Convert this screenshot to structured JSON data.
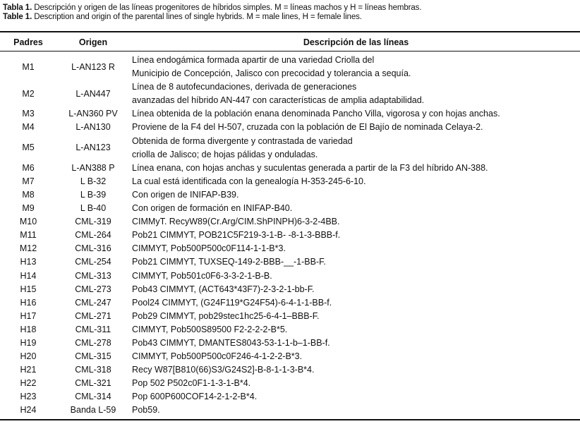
{
  "caption": {
    "es_label": "Tabla 1.",
    "es_text": "Descripción y origen de las líneas progenitores de híbridos simples. M = líneas machos y H = líneas hembras.",
    "en_label": "Table 1.",
    "en_text": "Description and origin of the parental lines of single hybrids. M = male lines, H = female lines."
  },
  "headers": [
    "Padres",
    "Origen",
    "Descripción de las líneas"
  ],
  "rows": [
    {
      "padre": "M1",
      "origen": "L-AN123 R",
      "desc": [
        "Línea endogámica formada apartir de una variedad Criolla del",
        "Municipio de Concepción, Jalisco con precocidad y tolerancia a sequía."
      ]
    },
    {
      "padre": "M2",
      "origen": "L-AN447",
      "desc": [
        "Línea de 8 autofecundaciones, derivada de generaciones",
        "avanzadas del híbrido AN-447 con características de amplia adaptabilidad."
      ]
    },
    {
      "padre": "M3",
      "origen": "L-AN360 PV",
      "desc": [
        "Línea obtenida de la población enana denominada Pancho Villa, vigorosa y con hojas anchas."
      ]
    },
    {
      "padre": "M4",
      "origen": "L-AN130",
      "desc": [
        "Proviene de la F4 del H-507, cruzada con la población de El Bajío de nominada Celaya-2."
      ]
    },
    {
      "padre": "M5",
      "origen": "L-AN123",
      "desc": [
        "Obtenida de forma divergente y contrastada de variedad",
        "criolla de Jalisco; de hojas pálidas y onduladas."
      ]
    },
    {
      "padre": "M6",
      "origen": "L-AN388 P",
      "desc": [
        "Línea enana, con hojas anchas y suculentas generada a partir de la F3 del híbrido AN-388."
      ]
    },
    {
      "padre": "M7",
      "origen": "L B-32",
      "desc": [
        "La cual está identificada con la genealogía H-353-245-6-10."
      ]
    },
    {
      "padre": "M8",
      "origen": "L B-39",
      "desc": [
        "Con origen de INIFAP-B39."
      ]
    },
    {
      "padre": "M9",
      "origen": "L B-40",
      "desc": [
        "Con origen de formación en INIFAP-B40."
      ]
    },
    {
      "padre": "M10",
      "origen": "CML-319",
      "desc": [
        "CIMMyT. RecyW89(Cr.Arg/CIM.ShPINPH)6-3-2-4BB."
      ]
    },
    {
      "padre": "M11",
      "origen": "CML-264",
      "desc": [
        "Pob21 CIMMYT, POB21C5F219-3-1-B- -8-1-3-BBB-f."
      ]
    },
    {
      "padre": "M12",
      "origen": "CML-316",
      "desc": [
        "CIMMYT, Pob500P500c0F114-1-1-B*3."
      ]
    },
    {
      "padre": "H13",
      "origen": "CML-254",
      "desc": [
        "Pob21 CIMMYT, TUXSEQ-149-2-BBB-__-1-BB-F."
      ]
    },
    {
      "padre": "H14",
      "origen": "CML-313",
      "desc": [
        "CIMMYT, Pob501c0F6-3-3-2-1-B-B."
      ]
    },
    {
      "padre": "H15",
      "origen": "CML-273",
      "desc": [
        "Pob43 CIMMYT, (ACT643*43F7)-2-3-2-1-bb-F."
      ]
    },
    {
      "padre": "H16",
      "origen": "CML-247",
      "desc": [
        "Pool24 CIMMYT, (G24F119*G24F54)-6-4-1-1-BB-f."
      ]
    },
    {
      "padre": "H17",
      "origen": "CML-271",
      "desc": [
        "Pob29 CIMMYT, pob29stec1hc25-6-4-1–BBB-F."
      ]
    },
    {
      "padre": "H18",
      "origen": "CML-311",
      "desc": [
        "CIMMYT, Pob500S89500 F2-2-2-2-B*5."
      ]
    },
    {
      "padre": "H19",
      "origen": "CML-278",
      "desc": [
        "Pob43 CIMMYT, DMANTES8043-53-1-1-b–1-BB-f."
      ]
    },
    {
      "padre": "H20",
      "origen": "CML-315",
      "desc": [
        "CIMMYT, Pob500P500c0F246-4-1-2-2-B*3."
      ]
    },
    {
      "padre": "H21",
      "origen": "CML-318",
      "desc": [
        "Recy W87[B810(66)S3/G24S2]-B-8-1-1-3-B*4."
      ]
    },
    {
      "padre": "H22",
      "origen": "CML-321",
      "desc": [
        "Pop 502 P502c0F1-1-3-1-B*4."
      ]
    },
    {
      "padre": "H23",
      "origen": "CML-314",
      "desc": [
        "Pop 600P600COF14-2-1-2-B*4."
      ]
    },
    {
      "padre": "H24",
      "origen": "Banda L-59",
      "desc": [
        "Pob59."
      ]
    }
  ]
}
